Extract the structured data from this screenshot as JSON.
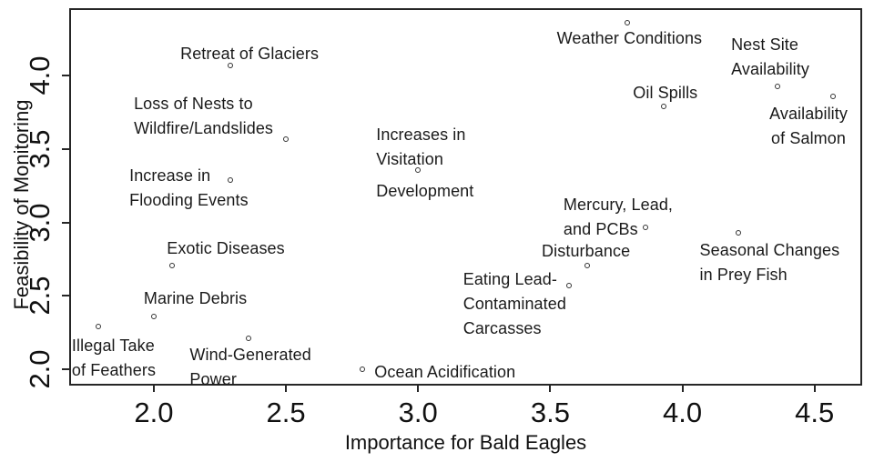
{
  "figure": {
    "background_color": "#ffffff",
    "text_color": "#1a1a1a",
    "axis_color": "#262626",
    "marker_color": "#333333"
  },
  "chart_data": {
    "type": "scatter",
    "title": "",
    "xlabel": "Importance for Bald Eagles",
    "ylabel": "Feasibility of Monitoring",
    "xlim": [
      1.68,
      4.68
    ],
    "ylim": [
      1.89,
      4.46
    ],
    "xticks": [
      "2.0",
      "2.5",
      "3.0",
      "3.5",
      "4.0",
      "4.5"
    ],
    "yticks": [
      "2.0",
      "2.5",
      "3.0",
      "3.5",
      "4.0"
    ],
    "grid": false,
    "legend": null,
    "marker_style": "open-circle",
    "points": [
      {
        "label": "Retreat of Glaciers",
        "x": 2.29,
        "y": 4.07,
        "label_lines": [
          "Retreat of Glaciers"
        ],
        "label_offset": [
          -55,
          -26
        ]
      },
      {
        "label": "Weather Conditions",
        "x": 3.79,
        "y": 4.36,
        "label_lines": [
          "Weather Conditions"
        ],
        "label_offset": [
          -77,
          4
        ]
      },
      {
        "label": "Nest Site Availability",
        "x": 4.36,
        "y": 3.93,
        "label_lines": [
          "Nest Site",
          "Availability"
        ],
        "label_offset": [
          -51,
          -59
        ]
      },
      {
        "label": "Availability of Salmon",
        "x": 4.57,
        "y": 3.86,
        "label_lines": [
          "Availability",
          "of Salmon"
        ],
        "label_offset": [
          -70,
          6
        ],
        "align": "center"
      },
      {
        "label": "Oil Spills",
        "x": 3.93,
        "y": 3.79,
        "label_lines": [
          "Oil Spills"
        ],
        "label_offset": [
          -34,
          -28
        ]
      },
      {
        "label": "Loss of Nests to Wildfire/Landslides",
        "x": 2.5,
        "y": 3.57,
        "label_lines": [
          "Loss of Nests to",
          "Wildfire/Landslides"
        ],
        "label_offset": [
          -167,
          -52
        ]
      },
      {
        "label": "Increases in Visitation Development",
        "x": 3.0,
        "y": 3.36,
        "label_lines": [
          "Increases in",
          "Visitation"
        ],
        "label_offset": [
          -46,
          -52
        ],
        "label2_lines": [
          "Development"
        ],
        "label2_offset": [
          -46,
          10
        ]
      },
      {
        "label": "Increase in Flooding Events",
        "x": 2.29,
        "y": 3.29,
        "label_lines": [
          "Increase in",
          "Flooding Events"
        ],
        "label_offset": [
          -111,
          -18
        ]
      },
      {
        "label": "Mercury, Lead, and PCBs",
        "x": 3.86,
        "y": 2.97,
        "label_lines": [
          "Mercury, Lead,",
          "and PCBs"
        ],
        "label_offset": [
          -90,
          -38
        ]
      },
      {
        "label": "Seasonal Changes in Prey Fish",
        "x": 4.21,
        "y": 2.93,
        "label_lines": [
          "Seasonal Changes",
          "in Prey Fish"
        ],
        "label_offset": [
          -42,
          6
        ]
      },
      {
        "label": "Disturbance",
        "x": 3.64,
        "y": 2.71,
        "label_lines": [
          "Disturbance"
        ],
        "label_offset": [
          -50,
          -29
        ]
      },
      {
        "label": "Eating Lead-Contaminated Carcasses",
        "x": 3.57,
        "y": 2.57,
        "label_lines": [
          "Eating Lead-",
          "Contaminated",
          "Carcasses"
        ],
        "label_offset": [
          -116,
          -20
        ]
      },
      {
        "label": "Exotic Diseases",
        "x": 2.07,
        "y": 2.71,
        "label_lines": [
          "Exotic Diseases"
        ],
        "label_offset": [
          -6,
          -32
        ]
      },
      {
        "label": "Marine Debris",
        "x": 2.0,
        "y": 2.36,
        "label_lines": [
          "Marine Debris"
        ],
        "label_offset": [
          -11,
          -33
        ]
      },
      {
        "label": "Illegal Take of Feathers",
        "x": 1.79,
        "y": 2.29,
        "label_lines": [
          "Illegal Take",
          "of Feathers"
        ],
        "label_offset": [
          -29,
          8
        ]
      },
      {
        "label": "Wind-Generated Power",
        "x": 2.36,
        "y": 2.21,
        "label_lines": [
          "Wind-Generated",
          "Power"
        ],
        "label_offset": [
          -65,
          5
        ]
      },
      {
        "label": "Ocean Acidification",
        "x": 2.79,
        "y": 2.0,
        "label_lines": [
          "Ocean Acidification"
        ],
        "label_offset": [
          13,
          -10
        ]
      }
    ]
  }
}
